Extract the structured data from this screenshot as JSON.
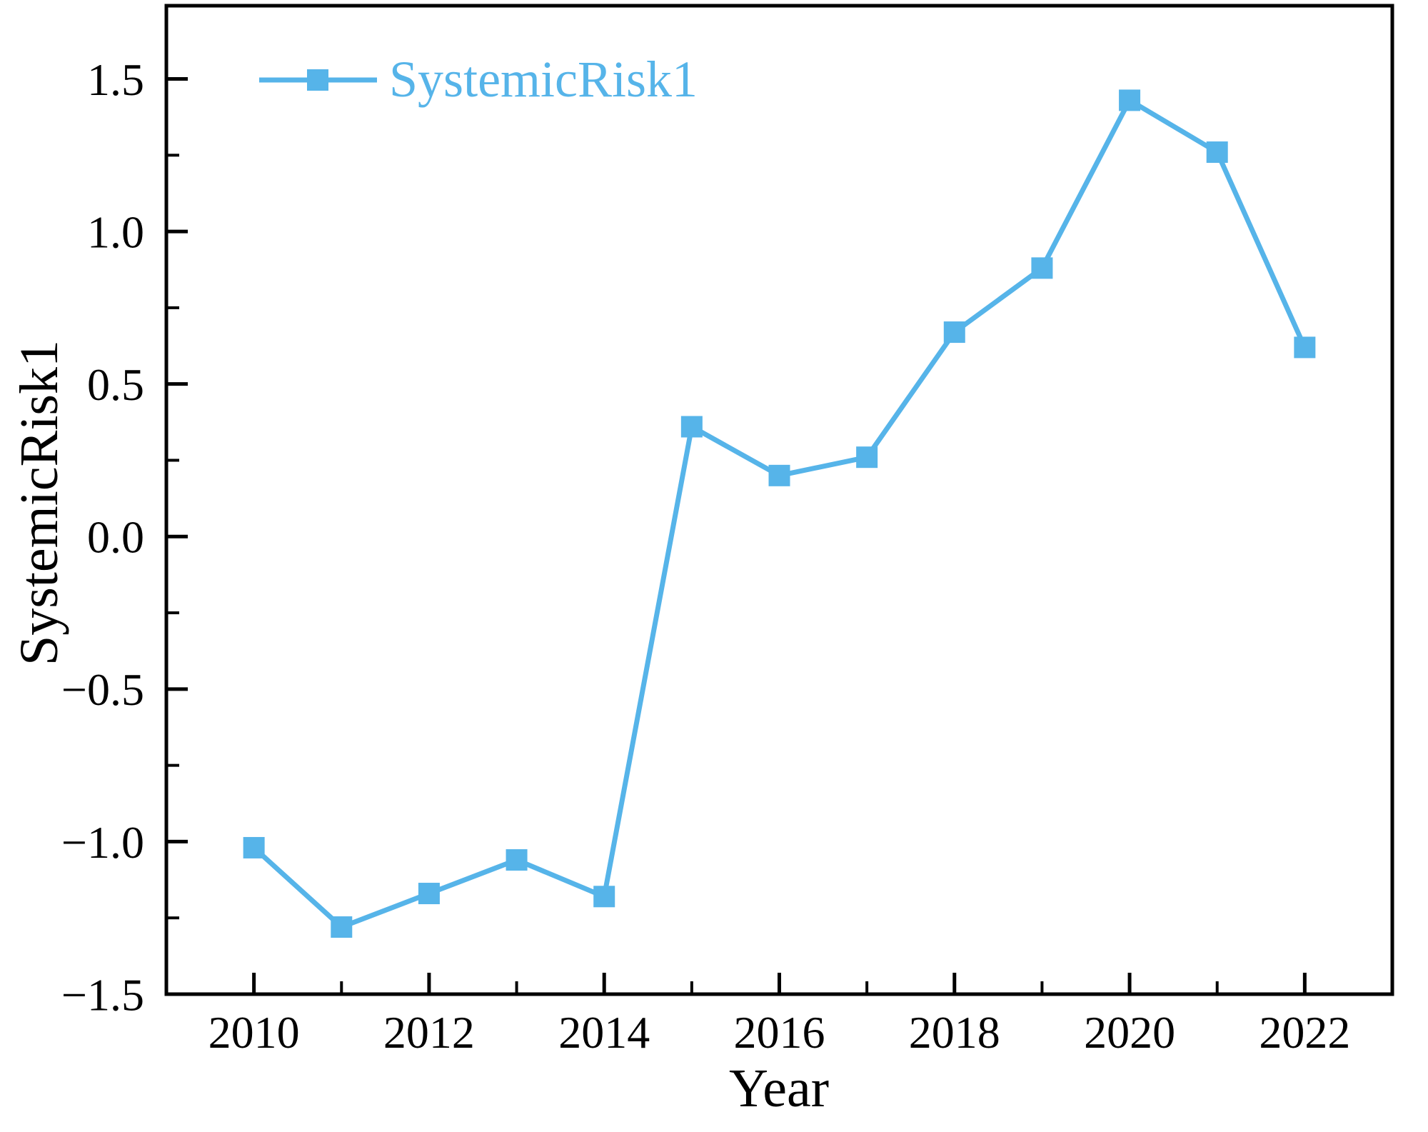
{
  "chart_data": {
    "type": "line",
    "title": "",
    "xlabel": "Year",
    "ylabel": "SystemicRisk1",
    "x": [
      2010,
      2011,
      2012,
      2013,
      2014,
      2015,
      2016,
      2017,
      2018,
      2019,
      2020,
      2021,
      2022
    ],
    "series": [
      {
        "name": "SystemicRisk1",
        "color": "#56B4E9",
        "marker": "square",
        "values": [
          -1.02,
          -1.28,
          -1.17,
          -1.06,
          -1.18,
          0.36,
          0.2,
          0.26,
          0.67,
          0.88,
          1.43,
          1.26,
          0.62
        ]
      }
    ],
    "xlim": [
      2009,
      2023
    ],
    "ylim": [
      -1.5,
      1.74
    ],
    "xticks": {
      "major": [
        2010,
        2012,
        2014,
        2016,
        2018,
        2020,
        2022
      ],
      "minor": [
        2011,
        2013,
        2015,
        2017,
        2019,
        2021
      ],
      "labels": [
        "2010",
        "2012",
        "2014",
        "2016",
        "2018",
        "2020",
        "2022"
      ]
    },
    "yticks": {
      "major": [
        -1.5,
        -1.0,
        -0.5,
        0.0,
        0.5,
        1.0,
        1.5
      ],
      "minor": [
        -1.25,
        -0.75,
        -0.25,
        0.25,
        0.75,
        1.25
      ],
      "labels": [
        "−1.5",
        "−1.0",
        "−0.5",
        "0.0",
        "0.5",
        "1.0",
        "1.5"
      ]
    },
    "grid": false,
    "legend": {
      "position": "upper-left",
      "entries": [
        "SystemicRisk1"
      ]
    },
    "frame_color": "#000000",
    "background": "#ffffff"
  }
}
